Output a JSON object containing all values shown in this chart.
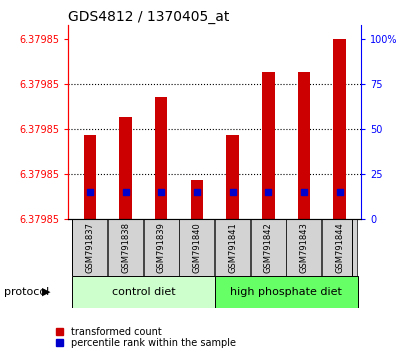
{
  "title": "GDS4812 / 1370405_at",
  "samples": [
    "GSM791837",
    "GSM791838",
    "GSM791839",
    "GSM791840",
    "GSM791841",
    "GSM791842",
    "GSM791843",
    "GSM791844"
  ],
  "transformed_counts_pct": [
    47,
    57,
    68,
    22,
    47,
    82,
    82,
    100
  ],
  "percentile_rank_pct": [
    15,
    15,
    15,
    15,
    15,
    15,
    15,
    15
  ],
  "bar_color": "#cc0000",
  "blue_color": "#0000cc",
  "left_yticks_labels": [
    "6.37985",
    "6.37985",
    "6.37985",
    "6.37985",
    "6.37985"
  ],
  "left_yticks_pos": [
    0,
    25,
    50,
    75,
    100
  ],
  "right_yticks": [
    0,
    25,
    50,
    75,
    100
  ],
  "right_ytick_labels": [
    "0",
    "25",
    "50",
    "75",
    "100%"
  ],
  "ylim": [
    0,
    108
  ],
  "control_diet_label": "control diet",
  "high_phosphate_label": "high phosphate diet",
  "protocol_label": "protocol",
  "legend_red_label": "transformed count",
  "legend_blue_label": "percentile rank within the sample",
  "control_diet_color": "#ccffcc",
  "high_phosphate_color": "#66ff66",
  "grid_color": "#000000",
  "title_fontsize": 10,
  "tick_fontsize": 7,
  "bar_width": 0.35
}
